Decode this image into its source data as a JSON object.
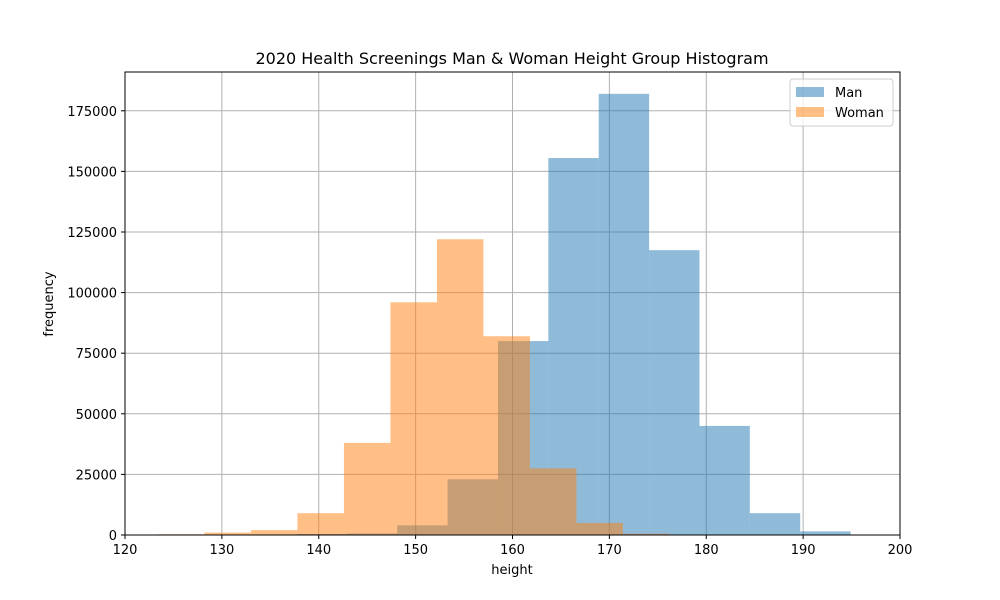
{
  "chart_data": {
    "type": "bar",
    "subtype": "histogram",
    "title": "2020 Health Screenings Man & Woman Height Group Histogram",
    "xlabel": "height",
    "ylabel": "frequency",
    "xlim": [
      120,
      200
    ],
    "ylim": [
      0,
      191000
    ],
    "xticks": [
      120,
      130,
      140,
      150,
      160,
      170,
      180,
      190,
      200
    ],
    "yticks": [
      0,
      25000,
      50000,
      75000,
      100000,
      125000,
      150000,
      175000
    ],
    "grid": true,
    "legend_position": "top-right",
    "series": [
      {
        "name": "Man",
        "color": "#1f77b4",
        "alpha": 0.5,
        "bin_edges": [
          132.5,
          137.7,
          142.9,
          148.1,
          153.3,
          158.5,
          163.7,
          168.9,
          174.1,
          179.3,
          184.5,
          189.7,
          194.9
        ],
        "values": [
          200,
          400,
          600,
          4000,
          23000,
          80000,
          155500,
          182000,
          117500,
          45000,
          9000,
          1500
        ]
      },
      {
        "name": "Woman",
        "color": "#ff7f0e",
        "alpha": 0.5,
        "bin_edges": [
          123.4,
          128.2,
          133.0,
          137.8,
          142.6,
          147.4,
          152.2,
          157.0,
          161.8,
          166.6,
          171.4,
          176.2
        ],
        "values": [
          300,
          1000,
          2000,
          9000,
          38000,
          96000,
          122000,
          82000,
          27500,
          5000,
          500
        ]
      }
    ]
  }
}
